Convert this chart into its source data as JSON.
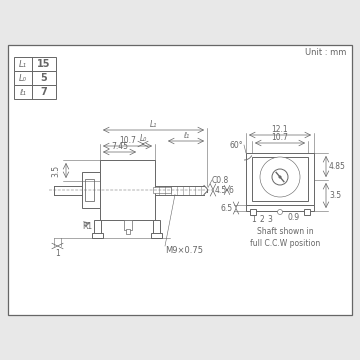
{
  "bg_color": "#e8e8e8",
  "drawing_bg": "#ffffff",
  "lc": "#666666",
  "title": "Unit : mm",
  "table_rows": [
    [
      "L₁",
      "15"
    ],
    [
      "L₀",
      "5"
    ],
    [
      "ℓ₁",
      "7"
    ]
  ],
  "shaft_text": "Shaft shown in\nfull C.C.W position",
  "m9_text": "M9×0.75",
  "c08_text": "C0.8",
  "r1_text": "R1"
}
